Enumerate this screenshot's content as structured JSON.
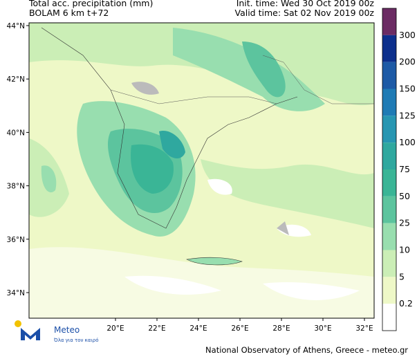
{
  "header": {
    "title": "Total acc. precipitation (mm)",
    "model": "BOLAM 6 km t+72",
    "init_time": "Init. time: Wed 30 Oct 2019 00z",
    "valid_time": "Valid time: Sat 02 Nov 2019 00z"
  },
  "map": {
    "lat_labels": [
      "44°N",
      "42°N",
      "40°N",
      "38°N",
      "36°N",
      "34°N"
    ],
    "lon_labels": [
      "20°E",
      "22°E",
      "24°E",
      "26°E",
      "28°E",
      "30°E",
      "32°E"
    ]
  },
  "legend": {
    "levels": [
      300,
      200,
      150,
      125,
      100,
      75,
      50,
      25,
      10,
      5,
      0.2
    ],
    "colors": [
      "#6b2b63",
      "#0c2f8c",
      "#1d5aa6",
      "#1f7bb5",
      "#2796b2",
      "#2fa89f",
      "#3ab596",
      "#5cc49e",
      "#98deaf",
      "#cbeeb6",
      "#eef8c7",
      "#ffffff"
    ]
  },
  "logo": {
    "name": "Meteo",
    "tagline": "Όλα για τον καιρό"
  },
  "footer": "National Observatory of Athens, Greece - meteo.gr"
}
